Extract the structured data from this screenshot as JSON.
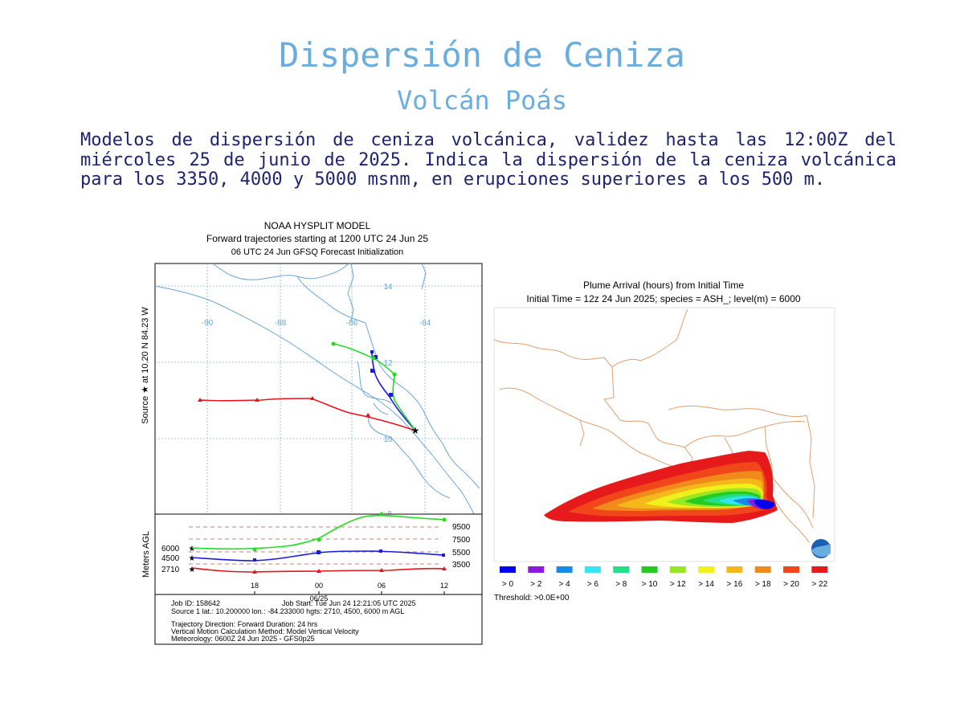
{
  "page": {
    "title": "Dispersión de Ceniza",
    "subtitle": "Volcán Poás",
    "description": "Modelos de dispersión de ceniza volcánica, validez hasta las 12:00Z del miércoles 25 de junio de 2025. Indica la dispersión de la ceniza volcánica para los 3350, 4000 y 5000 msnm, en erupciones superiores a los 500 m."
  },
  "hysplit": {
    "title1": "NOAA HYSPLIT MODEL",
    "title2": "Forward trajectories starting at 1200 UTC 24 Jun 25",
    "title3": "06 UTC 24 Jun    GFSQ  Forecast Initialization",
    "source_label": "Source ★  at   10.20 N   84.23 W",
    "lon_labels": [
      "-90",
      "-88",
      "-86",
      "-84"
    ],
    "lat_labels": [
      "14",
      "12",
      "10",
      "8"
    ],
    "height_axis_label": "Meters AGL",
    "left_height_labels": [
      "6000",
      "4500",
      "2710"
    ],
    "right_height_labels": [
      "9500",
      "7500",
      "5500",
      "3500"
    ],
    "time_labels": [
      "18",
      "00",
      "06",
      "12"
    ],
    "date_label": "06/25",
    "info": {
      "line1_left": "Job ID: 158642",
      "line1_right": "Job Start: Tue Jun 24 12:21:05 UTC 2025",
      "line2": "Source 1 lat.: 10.200000  lon.: -84.233000  hgts: 2710, 4500, 6000 m AGL",
      "line3": "Trajectory Direction: Forward      Duration: 24 hrs",
      "line4": "Vertical Motion Calculation Method:      Model Vertical Velocity",
      "line5": "Meteorology: 0600Z 24 Jun 2025 - GFS0p25"
    },
    "colors": {
      "t2710": "#e8141b",
      "t4500": "#1a1ae6",
      "t6000": "#22dd22",
      "coast": "#6aa5d6"
    }
  },
  "plume": {
    "title1": "Plume Arrival (hours) from Initial Time",
    "title2": "Initial Time = 12z 24 Jun 2025;  species = ASH_;  level(m) =  6000",
    "legend": [
      {
        "label": "> 0",
        "color": "#0000ee"
      },
      {
        "label": "> 2",
        "color": "#8a1ae0"
      },
      {
        "label": "> 4",
        "color": "#1a8ae6"
      },
      {
        "label": "> 6",
        "color": "#33e6f0"
      },
      {
        "label": "> 8",
        "color": "#22e088"
      },
      {
        "label": "> 10",
        "color": "#22cc22"
      },
      {
        "label": "> 12",
        "color": "#99e622"
      },
      {
        "label": "> 14",
        "color": "#f0f01a"
      },
      {
        "label": "> 16",
        "color": "#f5b81a"
      },
      {
        "label": "> 18",
        "color": "#f08a1a"
      },
      {
        "label": "> 20",
        "color": "#f0461a"
      },
      {
        "label": "> 22",
        "color": "#e61a1a"
      }
    ],
    "threshold": "Threshold: >0.0E+00",
    "border_color": "#e0a070"
  }
}
